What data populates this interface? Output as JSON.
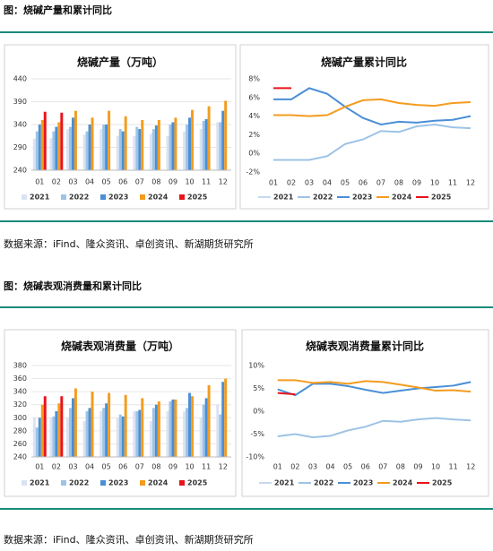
{
  "figure1": {
    "caption": "图：烧碱产量和累计同比",
    "source": "数据来源：iFind、隆众资讯、卓创资讯、新湖期货研究所"
  },
  "figure2": {
    "caption": "图：烧碱表观消费量和累计同比",
    "source": "数据来源：iFind、隆众资讯、卓创资讯、新湖期货研究所"
  },
  "chart_data": [
    {
      "type": "bar",
      "title": "烧碱产量（万吨）",
      "categories": [
        "01",
        "02",
        "03",
        "04",
        "05",
        "06",
        "07",
        "08",
        "09",
        "10",
        "11",
        "12"
      ],
      "ylim": [
        240,
        440
      ],
      "yticks": [
        240,
        290,
        340,
        390,
        440
      ],
      "grid": true,
      "series": [
        {
          "name": "2021",
          "color": "#dae3f3",
          "values": [
            309,
            310,
            330,
            318,
            330,
            315,
            315,
            320,
            315,
            325,
            330,
            345
          ]
        },
        {
          "name": "2022",
          "color": "#9dc3e6",
          "values": [
            325,
            325,
            335,
            325,
            340,
            330,
            335,
            330,
            340,
            340,
            348,
            345
          ]
        },
        {
          "name": "2023",
          "color": "#4a8fd6",
          "values": [
            340,
            335,
            355,
            340,
            340,
            325,
            330,
            338,
            345,
            355,
            352,
            370
          ]
        },
        {
          "name": "2024",
          "color": "#f39c1f",
          "values": [
            350,
            345,
            370,
            355,
            370,
            358,
            350,
            350,
            355,
            372,
            380,
            392
          ]
        },
        {
          "name": "2025",
          "color": "#e8141c",
          "values": [
            368,
            366,
            null,
            null,
            null,
            null,
            null,
            null,
            null,
            null,
            null,
            null
          ]
        }
      ]
    },
    {
      "type": "line",
      "title": "烧碱产量累计同比",
      "categories": [
        "01",
        "02",
        "03",
        "04",
        "05",
        "06",
        "07",
        "08",
        "09",
        "10",
        "11",
        "12"
      ],
      "ylim": [
        -2,
        8
      ],
      "grid": false,
      "yticks": [
        {
          "value": -2,
          "label": "-2%"
        },
        {
          "value": 0,
          "label": "0%"
        },
        {
          "value": 2,
          "label": "2%"
        },
        {
          "value": 4,
          "label": "4%"
        },
        {
          "value": 6,
          "label": "6%"
        },
        {
          "value": 8,
          "label": "8%"
        }
      ],
      "series": [
        {
          "name": "2021",
          "color": "#c5d9f0",
          "values": [
            null,
            null,
            null,
            null,
            null,
            null,
            null,
            null,
            null,
            null,
            null,
            null
          ]
        },
        {
          "name": "2022",
          "color": "#9dc3e6",
          "values": [
            -0.7,
            -0.7,
            -0.7,
            -0.3,
            1.0,
            1.5,
            2.4,
            2.3,
            2.9,
            3.1,
            2.8,
            2.7
          ]
        },
        {
          "name": "2023",
          "color": "#4a8fd6",
          "values": [
            5.8,
            5.8,
            7.0,
            6.4,
            5.0,
            3.8,
            3.1,
            3.4,
            3.3,
            3.5,
            3.6,
            4.0
          ]
        },
        {
          "name": "2024",
          "color": "#f39c1f",
          "values": [
            4.1,
            4.1,
            4.0,
            4.1,
            5.0,
            5.7,
            5.8,
            5.4,
            5.2,
            5.1,
            5.4,
            5.5
          ]
        },
        {
          "name": "2025",
          "color": "#e8141c",
          "values": [
            7.0,
            7.0,
            null,
            null,
            null,
            null,
            null,
            null,
            null,
            null,
            null,
            null
          ]
        }
      ]
    },
    {
      "type": "bar",
      "title": "烧碱表观消费量（万吨）",
      "categories": [
        "01",
        "02",
        "03",
        "04",
        "05",
        "06",
        "07",
        "08",
        "09",
        "10",
        "11",
        "12"
      ],
      "ylim": [
        240,
        380
      ],
      "yticks": [
        240,
        260,
        280,
        300,
        320,
        340,
        360,
        380
      ],
      "grid": true,
      "series": [
        {
          "name": "2021",
          "color": "#dae3f3",
          "values": [
            300,
            300,
            300,
            295,
            310,
            300,
            310,
            295,
            310,
            310,
            300,
            320
          ]
        },
        {
          "name": "2022",
          "color": "#9dc3e6",
          "values": [
            285,
            302,
            315,
            310,
            315,
            305,
            310,
            315,
            325,
            315,
            320,
            305
          ]
        },
        {
          "name": "2023",
          "color": "#4a8fd6",
          "values": [
            300,
            310,
            330,
            315,
            322,
            302,
            312,
            320,
            328,
            338,
            330,
            355
          ]
        },
        {
          "name": "2024",
          "color": "#f39c1f",
          "values": [
            320,
            322,
            345,
            340,
            338,
            335,
            330,
            325,
            328,
            333,
            350,
            360
          ]
        },
        {
          "name": "2025",
          "color": "#e8141c",
          "values": [
            333,
            333,
            null,
            null,
            null,
            null,
            null,
            null,
            null,
            null,
            null,
            null
          ]
        }
      ]
    },
    {
      "type": "line",
      "title": "烧碱表观消费量累计同比",
      "categories": [
        "01",
        "02",
        "03",
        "04",
        "05",
        "06",
        "07",
        "08",
        "09",
        "10",
        "11",
        "12"
      ],
      "ylim": [
        -10,
        10
      ],
      "grid": false,
      "yticks": [
        {
          "value": -10,
          "label": "-10%"
        },
        {
          "value": -5,
          "label": "-5%"
        },
        {
          "value": 0,
          "label": "0%"
        },
        {
          "value": 5,
          "label": "5%"
        },
        {
          "value": 10,
          "label": "10%"
        }
      ],
      "series": [
        {
          "name": "2021",
          "color": "#c5d9f0",
          "values": [
            null,
            null,
            null,
            null,
            null,
            null,
            null,
            null,
            null,
            null,
            null,
            null
          ]
        },
        {
          "name": "2022",
          "color": "#9dc3e6",
          "values": [
            -5.5,
            -5.0,
            -5.7,
            -5.4,
            -4.2,
            -3.4,
            -2.1,
            -2.3,
            -1.8,
            -1.5,
            -1.8,
            -2.0
          ]
        },
        {
          "name": "2023",
          "color": "#4a8fd6",
          "values": [
            4.8,
            3.5,
            6.0,
            6.0,
            5.5,
            4.7,
            4.0,
            4.5,
            5.0,
            5.3,
            5.6,
            6.4
          ]
        },
        {
          "name": "2024",
          "color": "#f39c1f",
          "values": [
            6.8,
            6.8,
            6.2,
            6.4,
            6.0,
            6.6,
            6.4,
            5.8,
            5.2,
            4.5,
            4.6,
            4.3
          ]
        },
        {
          "name": "2025",
          "color": "#e8141c",
          "values": [
            4.0,
            3.7,
            null,
            null,
            null,
            null,
            null,
            null,
            null,
            null,
            null,
            null
          ]
        }
      ]
    }
  ]
}
